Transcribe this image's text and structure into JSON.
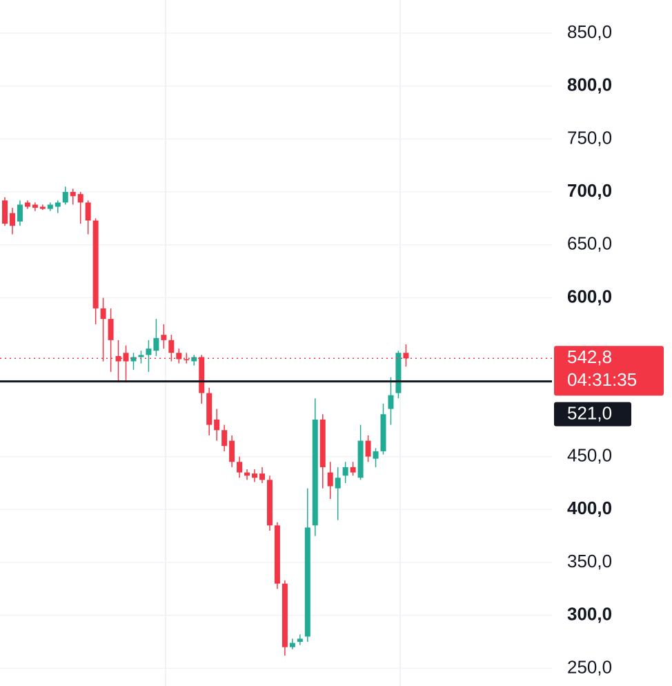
{
  "chart_data": {
    "type": "candlestick",
    "up_color": "#22ab94",
    "down_color": "#f23645",
    "open": [
      692,
      680,
      672,
      690,
      688,
      686,
      684,
      686,
      690,
      700,
      698,
      690,
      673,
      590,
      580,
      545,
      548,
      540,
      544,
      546,
      550,
      565,
      560,
      548,
      542,
      540,
      544,
      510,
      485,
      475,
      465,
      445,
      435,
      434,
      434,
      428,
      385,
      330,
      270,
      275,
      280,
      385,
      485,
      435,
      420,
      432,
      440,
      430,
      465,
      448,
      455,
      495,
      510,
      548
    ],
    "high": [
      695,
      685,
      692,
      692,
      690,
      688,
      690,
      692,
      705,
      703,
      700,
      692,
      675,
      600,
      590,
      560,
      555,
      548,
      550,
      560,
      580,
      575,
      565,
      552,
      548,
      546,
      546,
      515,
      495,
      480,
      470,
      450,
      438,
      438,
      440,
      432,
      388,
      333,
      278,
      282,
      420,
      505,
      490,
      445,
      440,
      445,
      445,
      480,
      470,
      458,
      500,
      525,
      550,
      556
    ],
    "low": [
      668,
      660,
      668,
      684,
      682,
      683,
      682,
      680,
      688,
      688,
      670,
      660,
      575,
      540,
      530,
      520,
      520,
      532,
      538,
      530,
      545,
      552,
      540,
      538,
      538,
      536,
      500,
      470,
      465,
      455,
      440,
      430,
      428,
      426,
      425,
      380,
      325,
      262,
      268,
      272,
      275,
      375,
      420,
      410,
      390,
      425,
      432,
      428,
      445,
      440,
      452,
      480,
      505,
      535
    ],
    "close": [
      670,
      668,
      688,
      686,
      685,
      684,
      688,
      690,
      700,
      696,
      690,
      673,
      590,
      580,
      560,
      540,
      540,
      544,
      546,
      552,
      562,
      560,
      548,
      542,
      541,
      544,
      510,
      480,
      475,
      460,
      445,
      435,
      432,
      430,
      428,
      385,
      330,
      270,
      274,
      278,
      383,
      485,
      440,
      422,
      430,
      440,
      435,
      465,
      450,
      455,
      490,
      508,
      548,
      542.8
    ],
    "ylim": [
      233.3,
      881.3
    ],
    "yticks": [
      {
        "value": 850,
        "label": "850,0"
      },
      {
        "value": 800,
        "label": "800,0"
      },
      {
        "value": 750,
        "label": "750,0"
      },
      {
        "value": 700,
        "label": "700,0"
      },
      {
        "value": 650,
        "label": "650,0"
      },
      {
        "value": 600,
        "label": "600,0"
      },
      {
        "value": 450,
        "label": "450,0"
      },
      {
        "value": 400,
        "label": "400,0"
      },
      {
        "value": 350,
        "label": "350,0"
      },
      {
        "value": 300,
        "label": "300,0"
      },
      {
        "value": 250,
        "label": "250,0"
      }
    ],
    "grid": true,
    "last_price": {
      "value": 542.8,
      "label": "542,8"
    },
    "countdown": "04:31:35",
    "level": {
      "value": 521,
      "label": "521,0"
    }
  }
}
